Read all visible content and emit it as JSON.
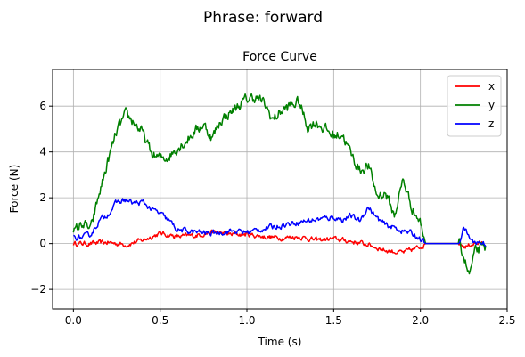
{
  "figure": {
    "suptitle": "Phrase: forward"
  },
  "chart_data": {
    "type": "line",
    "title": "Force Curve",
    "xlabel": "Time (s)",
    "ylabel": "Force (N)",
    "xlim": [
      -0.12,
      2.5
    ],
    "ylim": [
      -2.85,
      7.6
    ],
    "xticks": [
      0.0,
      0.5,
      1.0,
      1.5,
      2.0,
      2.5
    ],
    "xtick_labels": [
      "0.0",
      "0.5",
      "1.0",
      "1.5",
      "2.0",
      "2.5"
    ],
    "yticks": [
      -2,
      0,
      2,
      4,
      6
    ],
    "ytick_labels": [
      "−2",
      "0",
      "2",
      "4",
      "6"
    ],
    "grid": true,
    "legend_position": "top-right",
    "series": [
      {
        "name": "x",
        "color": "#ff0000",
        "noise": 0.09,
        "x": [
          0.0,
          0.1,
          0.2,
          0.3,
          0.4,
          0.5,
          0.6,
          0.7,
          0.8,
          0.9,
          1.0,
          1.1,
          1.2,
          1.3,
          1.4,
          1.5,
          1.6,
          1.7,
          1.8,
          1.9,
          2.0,
          2.03,
          2.1,
          2.22,
          2.26,
          2.3,
          2.38
        ],
        "y": [
          0.0,
          0.0,
          0.05,
          -0.05,
          0.15,
          0.45,
          0.3,
          0.35,
          0.5,
          0.4,
          0.4,
          0.3,
          0.25,
          0.3,
          0.15,
          0.2,
          0.1,
          -0.05,
          -0.3,
          -0.4,
          -0.15,
          0.0,
          0.0,
          0.0,
          -0.15,
          0.0,
          0.0
        ]
      },
      {
        "name": "y",
        "color": "#008000",
        "noise": 0.2,
        "x": [
          0.0,
          0.05,
          0.1,
          0.15,
          0.2,
          0.25,
          0.3,
          0.35,
          0.4,
          0.45,
          0.5,
          0.55,
          0.6,
          0.65,
          0.7,
          0.75,
          0.8,
          0.85,
          0.9,
          0.95,
          1.0,
          1.05,
          1.1,
          1.15,
          1.2,
          1.25,
          1.3,
          1.35,
          1.4,
          1.45,
          1.5,
          1.55,
          1.6,
          1.65,
          1.7,
          1.75,
          1.8,
          1.85,
          1.9,
          1.95,
          2.0,
          2.03,
          2.1,
          2.22,
          2.25,
          2.28,
          2.32,
          2.38
        ],
        "y": [
          0.4,
          0.9,
          0.6,
          2.2,
          3.6,
          4.9,
          5.6,
          5.3,
          4.8,
          3.9,
          3.7,
          3.8,
          4.2,
          4.5,
          4.9,
          5.2,
          4.6,
          5.4,
          5.7,
          6.0,
          6.3,
          6.4,
          6.1,
          5.4,
          5.8,
          6.0,
          6.2,
          5.1,
          5.3,
          5.0,
          4.7,
          4.8,
          3.9,
          3.2,
          3.4,
          2.1,
          2.2,
          1.2,
          2.8,
          1.6,
          0.9,
          0.0,
          0.0,
          0.0,
          -0.5,
          -1.4,
          -0.3,
          -0.2
        ]
      },
      {
        "name": "z",
        "color": "#0000ff",
        "noise": 0.1,
        "x": [
          0.0,
          0.05,
          0.1,
          0.15,
          0.2,
          0.25,
          0.3,
          0.35,
          0.4,
          0.45,
          0.5,
          0.55,
          0.6,
          0.7,
          0.8,
          0.9,
          1.0,
          1.1,
          1.2,
          1.3,
          1.4,
          1.5,
          1.55,
          1.6,
          1.65,
          1.7,
          1.75,
          1.8,
          1.85,
          1.9,
          1.95,
          2.0,
          2.03,
          2.1,
          2.22,
          2.25,
          2.28,
          2.3,
          2.38
        ],
        "y": [
          0.3,
          0.25,
          0.4,
          1.0,
          1.3,
          1.8,
          1.9,
          1.75,
          1.8,
          1.5,
          1.3,
          1.0,
          0.6,
          0.5,
          0.45,
          0.55,
          0.5,
          0.65,
          0.8,
          0.95,
          1.05,
          1.15,
          1.05,
          1.2,
          1.0,
          1.6,
          1.1,
          0.8,
          0.7,
          0.55,
          0.45,
          0.2,
          0.0,
          0.0,
          0.0,
          0.7,
          0.3,
          0.1,
          0.0
        ]
      }
    ]
  }
}
